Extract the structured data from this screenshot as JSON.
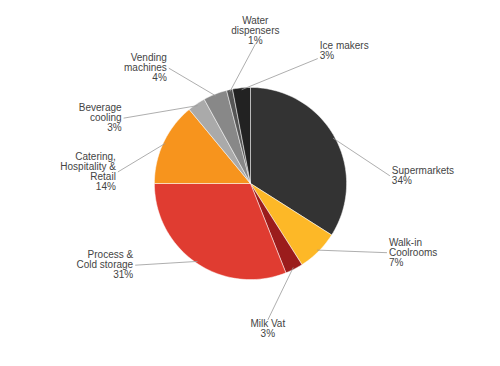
{
  "chart_data": {
    "type": "pie",
    "categories": [
      "Supermarkets",
      "Walk-in\nCoolrooms",
      "Milk Vat",
      "Process &\nCold storage",
      "Catering,\nHospitality &\nRetail",
      "Beverage\ncooling",
      "Vending\nmachines",
      "Water\ndispensers",
      "Ice makers"
    ],
    "values": [
      34,
      7,
      3,
      31,
      14,
      3,
      4,
      1,
      3
    ],
    "value_labels": [
      "34%",
      "7%",
      "3%",
      "31%",
      "14%",
      "3%",
      "4%",
      "1%",
      "3%"
    ],
    "colors": [
      "#333333",
      "#FDB827",
      "#9B1C1C",
      "#E03C31",
      "#F7941D",
      "#AAAAAA",
      "#888888",
      "#555555",
      "#222222"
    ],
    "data_labels": true
  }
}
